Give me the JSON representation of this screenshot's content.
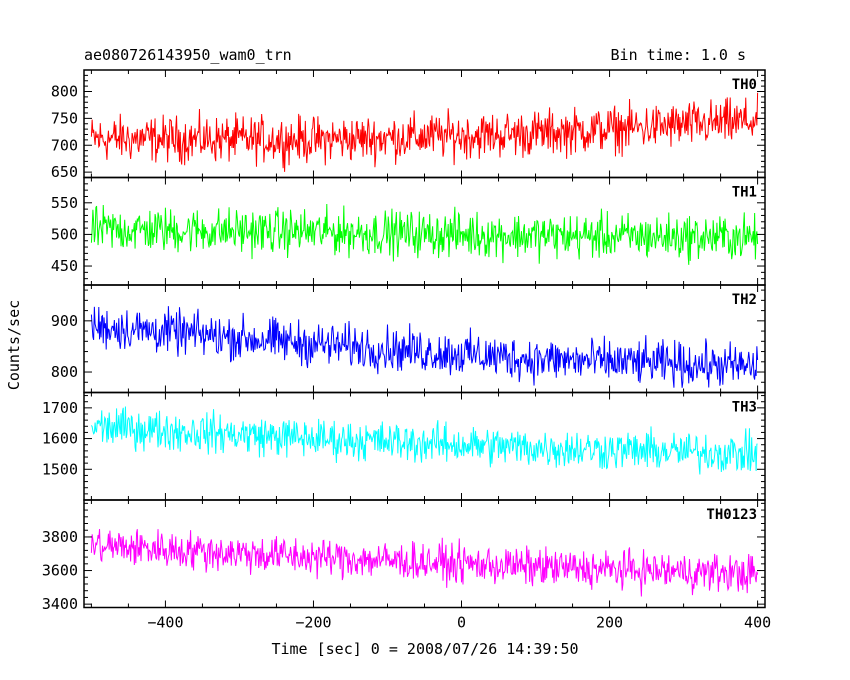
{
  "header": {
    "left_title": "ae080726143950_wam0_trn",
    "right_title": "Bin time: 1.0 s"
  },
  "axes": {
    "ylabel": "Counts/sec",
    "xlabel": "Time [sec] 0 = 2008/07/26 14:39:50",
    "x_ticks": [
      "−400",
      "−200",
      "0",
      "200",
      "400"
    ]
  },
  "chart_data": [
    {
      "type": "line",
      "name": "TH0",
      "color": "#ff0000",
      "xlim": [
        -510,
        410
      ],
      "ylim": [
        640,
        840
      ],
      "y_ticks": [
        650,
        700,
        750,
        800
      ],
      "x_range": [
        -500,
        400
      ],
      "bin_time_s": 1.0,
      "trend": [
        [
          -500,
          712
        ],
        [
          -200,
          710
        ],
        [
          100,
          722
        ],
        [
          400,
          745
        ]
      ],
      "noise_amplitude": 30
    },
    {
      "type": "line",
      "name": "TH1",
      "color": "#00ff00",
      "xlim": [
        -510,
        410
      ],
      "ylim": [
        420,
        590
      ],
      "y_ticks": [
        450,
        500,
        550
      ],
      "x_range": [
        -500,
        400
      ],
      "bin_time_s": 1.0,
      "trend": [
        [
          -500,
          508
        ],
        [
          -200,
          504
        ],
        [
          100,
          498
        ],
        [
          400,
          495
        ]
      ],
      "noise_amplitude": 25
    },
    {
      "type": "line",
      "name": "TH2",
      "color": "#0000ff",
      "xlim": [
        -510,
        410
      ],
      "ylim": [
        760,
        970
      ],
      "y_ticks": [
        800,
        900
      ],
      "x_range": [
        -500,
        400
      ],
      "bin_time_s": 1.0,
      "trend": [
        [
          -500,
          890
        ],
        [
          -200,
          855
        ],
        [
          100,
          825
        ],
        [
          400,
          810
        ]
      ],
      "noise_amplitude": 30
    },
    {
      "type": "line",
      "name": "TH3",
      "color": "#00ffff",
      "xlim": [
        -510,
        410
      ],
      "ylim": [
        1400,
        1750
      ],
      "y_ticks": [
        1500,
        1600,
        1700
      ],
      "x_range": [
        -500,
        400
      ],
      "bin_time_s": 1.0,
      "trend": [
        [
          -500,
          1640
        ],
        [
          -200,
          1600
        ],
        [
          100,
          1570
        ],
        [
          400,
          1550
        ]
      ],
      "noise_amplitude": 45
    },
    {
      "type": "line",
      "name": "TH0123",
      "color": "#ff00ff",
      "xlim": [
        -510,
        410
      ],
      "ylim": [
        3380,
        4020
      ],
      "y_ticks": [
        3400,
        3600,
        3800
      ],
      "x_range": [
        -500,
        400
      ],
      "bin_time_s": 1.0,
      "trend": [
        [
          -500,
          3750
        ],
        [
          -200,
          3680
        ],
        [
          100,
          3620
        ],
        [
          400,
          3580
        ]
      ],
      "noise_amplitude": 80
    }
  ]
}
